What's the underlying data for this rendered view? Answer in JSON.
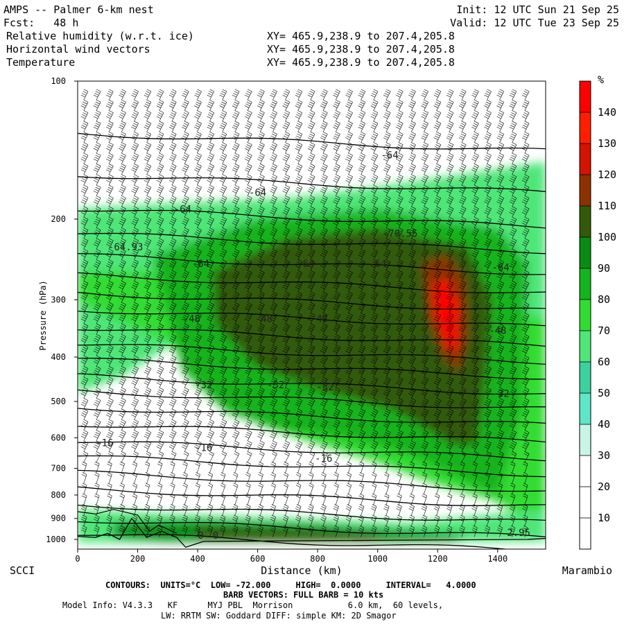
{
  "header": {
    "model": "AMPS -- Palmer 6-km nest",
    "fcst": "Fcst:   48 h",
    "init": "Init: 12 UTC Sun 21 Sep 25",
    "valid": "Valid: 12 UTC Tue 23 Sep 25",
    "fields": [
      {
        "name": "Relative humidity (w.r.t. ice)",
        "xy": "XY= 465.9,238.9 to 207.4,205.8"
      },
      {
        "name": "Horizontal wind vectors",
        "xy": "XY= 465.9,238.9 to 207.4,205.8"
      },
      {
        "name": "Temperature",
        "xy": "XY= 465.9,238.9 to 207.4,205.8"
      }
    ]
  },
  "colorbar": {
    "unit": "%",
    "levels": [
      0,
      10,
      20,
      30,
      40,
      50,
      60,
      70,
      80,
      90,
      100,
      110,
      120,
      130,
      140,
      150
    ],
    "tick_labels": [
      "10",
      "20",
      "30",
      "40",
      "50",
      "60",
      "70",
      "80",
      "90",
      "100",
      "110",
      "120",
      "130",
      "140"
    ],
    "colors": [
      "#ffffff",
      "#ffffff",
      "#ffffff",
      "#c8f5e6",
      "#5ee6c8",
      "#3cd2a0",
      "#50e678",
      "#32dc32",
      "#14b41e",
      "#0a8c14",
      "#325a0a",
      "#8c3200",
      "#d21400",
      "#ff1e00",
      "#ff0000"
    ]
  },
  "chart_data": {
    "type": "heatmap",
    "title": "Relative humidity (w.r.t. ice)",
    "xlabel": "Distance (km)",
    "ylabel": "Pressure (hPa)",
    "xlim": [
      0,
      1560
    ],
    "ylim": [
      1050,
      100
    ],
    "y_scale": "log",
    "x_ticks": [
      0,
      200,
      400,
      600,
      800,
      1000,
      1200,
      1400
    ],
    "y_ticks": [
      100,
      200,
      300,
      400,
      500,
      600,
      700,
      800,
      900,
      1000
    ],
    "left_endpoint": "SCCI",
    "right_endpoint": "Marambio",
    "temperature_contours": {
      "units": "°C",
      "interval": 4,
      "labelled_levels": [
        {
          "label": "-64",
          "x": 1040,
          "p": 145
        },
        {
          "label": "-64",
          "x": 600,
          "p": 175
        },
        {
          "label": "-64",
          "x": 350,
          "p": 190
        },
        {
          "label": "-64",
          "x": 410,
          "p": 250
        },
        {
          "label": "-64",
          "x": 760,
          "p": 250
        },
        {
          "label": "-64",
          "x": 1000,
          "p": 250
        },
        {
          "label": "-64",
          "x": 1410,
          "p": 255
        },
        {
          "label": "-70.55",
          "x": 1075,
          "p": 215
        },
        {
          "label": "-64.93",
          "x": 160,
          "p": 230
        },
        {
          "label": "-48",
          "x": 380,
          "p": 330
        },
        {
          "label": "-48",
          "x": 620,
          "p": 330
        },
        {
          "label": "-48",
          "x": 805,
          "p": 330
        },
        {
          "label": "-48",
          "x": 1400,
          "p": 350
        },
        {
          "label": "-32",
          "x": 420,
          "p": 460
        },
        {
          "label": "-32",
          "x": 660,
          "p": 460
        },
        {
          "label": "-32",
          "x": 825,
          "p": 465
        },
        {
          "label": "-32",
          "x": 1410,
          "p": 480
        },
        {
          "label": "-16",
          "x": 90,
          "p": 615
        },
        {
          "label": "-16",
          "x": 420,
          "p": 630
        },
        {
          "label": "-16",
          "x": 820,
          "p": 665
        },
        {
          "label": "0",
          "x": 410,
          "p": 980
        },
        {
          "label": "0",
          "x": 460,
          "p": 980
        },
        {
          "label": "2.95",
          "x": 1470,
          "p": 965
        }
      ]
    },
    "rh_features": [
      {
        "desc": "upper moist layer",
        "x": [
          0,
          1560
        ],
        "p": [
          190,
          320
        ],
        "rh": 70
      },
      {
        "desc": "moist wedge",
        "x": [
          250,
          1400
        ],
        "p": [
          220,
          620
        ],
        "rh": 90
      },
      {
        "desc": "core",
        "x": [
          420,
          1350
        ],
        "p": [
          250,
          560
        ],
        "rh": 105
      },
      {
        "desc": "supersaturated max",
        "x": [
          1150,
          1300
        ],
        "p": [
          240,
          420
        ],
        "rh": 140
      },
      {
        "desc": "boundary layer moist",
        "x": [
          0,
          1560
        ],
        "p": [
          860,
          1010
        ],
        "rh": 90
      }
    ]
  },
  "footer": {
    "line1": "CONTOURS:  UNITS=°C  LOW= -72.000     HIGH=  0.0000     INTERVAL=   4.0000",
    "line2": "BARB VECTORS: FULL BARB = 10 kts",
    "line3": "Model Info: V4.3.3   KF      MYJ PBL  Morrison           6.0 km,  60 levels,",
    "line4": "LW: RRTM SW: Goddard DIFF: simple KM: 2D Smagor"
  }
}
